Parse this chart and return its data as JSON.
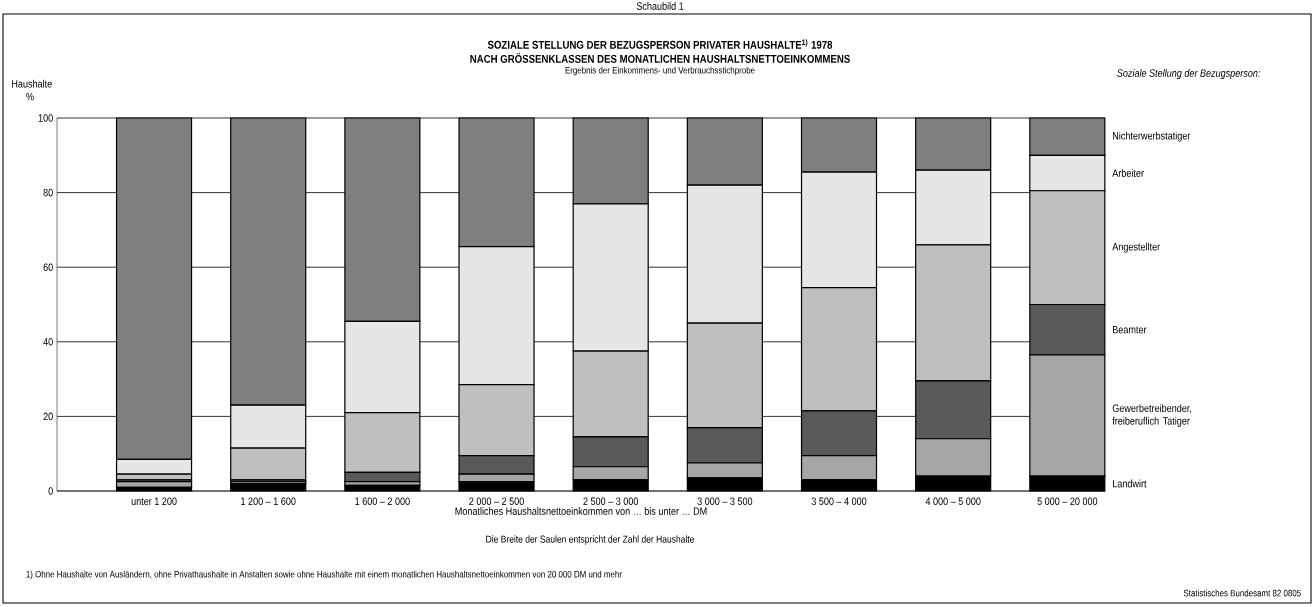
{
  "chart_data": {
    "type": "bar",
    "stacked": true,
    "title": "SOZIALE STELLUNG DER BEZUGSPERSON PRIVATER HAUSHALTE$^{1)}$ 1978",
    "subtitle": "NACH GRÖSSENKLASSEN DES MONATLICHEN HAUSHALTSNETTOEINKOMMENS",
    "xlabel": "Monatliches Haushaltsnettoeinkommen von … bis unter … DM",
    "ylabel": "Haushalte %",
    "legend_title": "Soziale Stellung der Bezugsperson:",
    "annotations": [
      "Schaubild 1",
      "Ergebnis der Einkommens- und Verbrauchsstichprobe",
      "Die Breite der Saulen entspricht der Zahl der Haushalte",
      "1) Ohne Haushalte von Ausländern, ohne Privathaushalte in Anstalten sowie ohne Haushalte mit einem monatlichen Haushaltsnettoeinkommen von 20 000 DM und mehr",
      "Statistisches Bundesamt 82 0805"
    ],
    "categories": [
      "unter 1 200",
      "1 200 – 1 600",
      "1 600 – 2 000",
      "2 000 – 2 500",
      "2 500 – 3 000",
      "3 000 – 3 500",
      "3 500 – 4 000",
      "4 000 – 5 000",
      "5 000 – 20 000"
    ],
    "series": [
      {
        "name": "Landwirt",
        "color": "#000000",
        "values": [
          1,
          2,
          1.5,
          2.5,
          3,
          3.5,
          3,
          4,
          4
        ]
      },
      {
        "name": "Gewerbetreibender, freiberuflich Tatiger",
        "color": "#a6a6a6",
        "values": [
          1.5,
          0.5,
          1,
          2,
          3.5,
          4,
          6.5,
          10,
          32.5
        ]
      },
      {
        "name": "Beamter",
        "color": "#595959",
        "values": [
          0.5,
          0.5,
          2.5,
          5,
          8,
          9.5,
          12,
          15.5,
          13.5
        ]
      },
      {
        "name": "Angestellter",
        "color": "#bfbfbf",
        "values": [
          1.5,
          8.5,
          16,
          19,
          23,
          28,
          33,
          36.5,
          30.5
        ]
      },
      {
        "name": "Arbeiter",
        "color": "#e6e6e6",
        "values": [
          4,
          11.5,
          24.5,
          37,
          39.5,
          37,
          31,
          20,
          9.5
        ]
      },
      {
        "name": "Nichterwerbstatiger",
        "color": "#7f7f7f",
        "values": [
          91.5,
          77,
          54.5,
          34.5,
          23,
          18,
          14.5,
          14,
          10
        ]
      }
    ],
    "ylim": [
      0,
      100
    ],
    "yticks": [
      0,
      20,
      40,
      60,
      80,
      100
    ],
    "grid": "y",
    "legend": "right"
  }
}
